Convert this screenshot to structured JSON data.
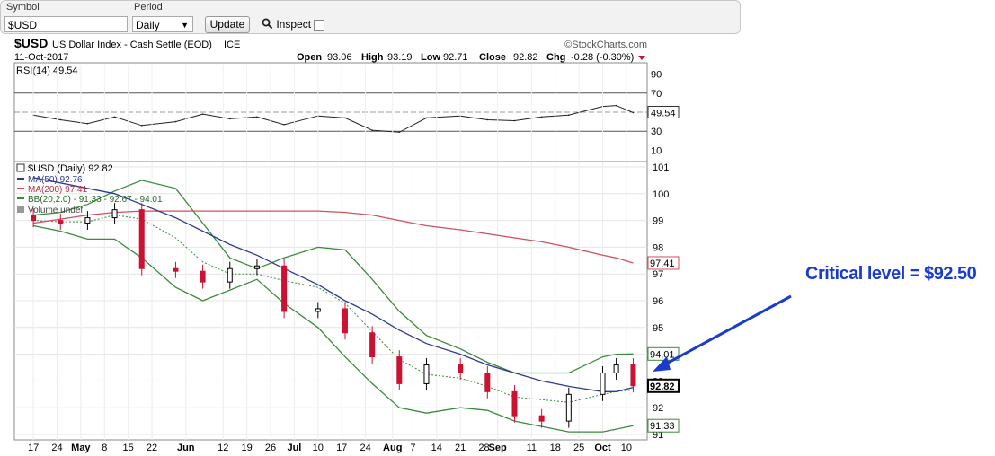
{
  "toolbar": {
    "symbol_label": "Symbol",
    "symbol_value": "$USD",
    "period_label": "Period",
    "period_value": "Daily",
    "update_label": "Update",
    "inspect_label": "Inspect"
  },
  "header": {
    "symbol": "$USD",
    "name": "US Dollar Index - Cash Settle (EOD)",
    "exchange": "ICE",
    "brand": "©StockCharts.com",
    "date": "11-Oct-2017",
    "open_label": "Open",
    "open": "93.06",
    "high_label": "High",
    "high": "93.19",
    "low_label": "Low",
    "low": "92.71",
    "close_label": "Close",
    "close": "92.82",
    "chg_label": "Chg",
    "chg": "-0.28 (-0.30%)"
  },
  "annotation": {
    "text": "Critical level = $92.50"
  },
  "colors": {
    "up_candle": "#000000",
    "down_candle": "#cc1133",
    "ma50": "#2e3a8c",
    "ma200": "#d05060",
    "bollinger": "#3c8a3c",
    "arrow": "#1a3bd0",
    "rsi_fill": "#c07080"
  },
  "chart_data": [
    {
      "type": "line",
      "title": "RSI(14) 49.54",
      "x": [
        "2017-04-17",
        "2017-04-25",
        "2017-05-03",
        "2017-05-11",
        "2017-05-19",
        "2017-05-29",
        "2017-06-06",
        "2017-06-14",
        "2017-06-22",
        "2017-06-30",
        "2017-07-10",
        "2017-07-18",
        "2017-07-26",
        "2017-08-03",
        "2017-08-11",
        "2017-08-21",
        "2017-08-29",
        "2017-09-06",
        "2017-09-14",
        "2017-09-22",
        "2017-10-02",
        "2017-10-06",
        "2017-10-11"
      ],
      "series": [
        {
          "name": "RSI(14)",
          "values": [
            47,
            42,
            38,
            45,
            36,
            40,
            48,
            43,
            45,
            37,
            46,
            44,
            31,
            29,
            44,
            46,
            42,
            41,
            45,
            47,
            56,
            57,
            49.54
          ]
        }
      ],
      "ylim": [
        0,
        100
      ],
      "reference_lines": [
        30,
        70
      ],
      "yticks": [
        10,
        30,
        50,
        70,
        90
      ],
      "last_value_label": "49.54"
    },
    {
      "type": "candlestick",
      "title": "$USD (Daily) 92.82",
      "legend": [
        {
          "name": "$USD (Daily)",
          "value": "92.82"
        },
        {
          "name": "MA(50)",
          "value": "92.76"
        },
        {
          "name": "MA(200)",
          "value": "97.41"
        },
        {
          "name": "BB(20,2.0)",
          "value": "91.33 - 92.67 - 94.01"
        },
        {
          "name": "Volume",
          "value": "undef"
        }
      ],
      "legend_position": "top-left",
      "x": [
        "2017-04-17",
        "2017-04-25",
        "2017-05-03",
        "2017-05-11",
        "2017-05-19",
        "2017-05-29",
        "2017-06-06",
        "2017-06-14",
        "2017-06-22",
        "2017-06-30",
        "2017-07-10",
        "2017-07-18",
        "2017-07-26",
        "2017-08-03",
        "2017-08-11",
        "2017-08-21",
        "2017-08-29",
        "2017-09-06",
        "2017-09-14",
        "2017-09-22",
        "2017-10-02",
        "2017-10-06",
        "2017-10-11"
      ],
      "series": [
        {
          "name": "$USD (Daily)",
          "values": [
            99.0,
            98.9,
            99.1,
            99.4,
            97.2,
            97.1,
            96.7,
            97.2,
            97.3,
            95.6,
            95.7,
            94.8,
            93.9,
            92.9,
            93.6,
            93.3,
            92.6,
            91.7,
            91.5,
            92.5,
            93.3,
            93.6,
            92.82
          ]
        },
        {
          "name": "MA(50)",
          "values": [
            100.6,
            100.4,
            100.2,
            100.0,
            99.6,
            99.1,
            98.6,
            98.1,
            97.7,
            97.2,
            96.6,
            96.0,
            95.5,
            94.9,
            94.4,
            94.0,
            93.6,
            93.3,
            93.0,
            92.8,
            92.6,
            92.6,
            92.76
          ]
        },
        {
          "name": "MA(200)",
          "values": [
            98.9,
            99.05,
            99.2,
            99.3,
            99.35,
            99.35,
            99.35,
            99.35,
            99.35,
            99.35,
            99.35,
            99.3,
            99.2,
            99.0,
            98.8,
            98.65,
            98.5,
            98.35,
            98.2,
            98.0,
            97.7,
            97.6,
            97.41
          ]
        },
        {
          "name": "BB upper",
          "values": [
            99.2,
            99.3,
            99.6,
            100.1,
            100.5,
            100.2,
            98.9,
            97.6,
            97.2,
            97.6,
            98.0,
            97.9,
            96.8,
            95.6,
            94.7,
            94.2,
            93.7,
            93.3,
            93.3,
            93.3,
            93.9,
            94.0,
            94.01
          ]
        },
        {
          "name": "BB lower",
          "values": [
            98.8,
            98.6,
            98.3,
            98.3,
            97.6,
            96.5,
            96.0,
            96.4,
            96.8,
            95.9,
            95.0,
            93.9,
            92.9,
            92.0,
            91.8,
            92.0,
            91.9,
            91.5,
            91.3,
            91.1,
            91.1,
            91.2,
            91.33
          ]
        }
      ],
      "ylim": [
        90.8,
        101.2
      ],
      "yticks": [
        91,
        92,
        93,
        94,
        95,
        96,
        97,
        98,
        99,
        100,
        101
      ],
      "last_value_labels": [
        "97.41",
        "94.01",
        "92.82",
        "91.33"
      ],
      "xtick_labels": [
        "17",
        "24",
        "May",
        "8",
        "15",
        "22",
        "Jun",
        "12",
        "19",
        "26",
        "Jul",
        "10",
        "17",
        "24",
        "Aug",
        "7",
        "14",
        "21",
        "28",
        "Sep",
        "11",
        "18",
        "25",
        "Oct",
        "10"
      ]
    }
  ]
}
